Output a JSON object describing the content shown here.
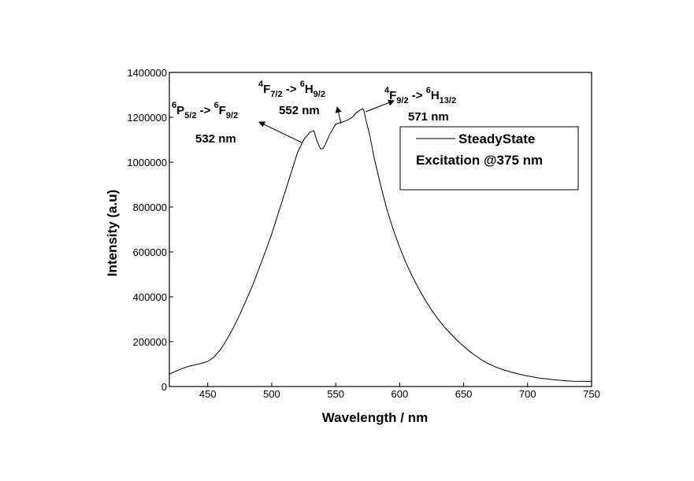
{
  "chart_data": {
    "type": "line",
    "xlabel": "Wavelength / nm",
    "ylabel": "Intensity  (a.u)",
    "xlim": [
      420,
      750
    ],
    "ylim": [
      0,
      1400000
    ],
    "x_ticks": [
      450,
      500,
      550,
      600,
      650,
      700,
      750
    ],
    "x_tick_labels": [
      "450",
      "500",
      "550",
      "600",
      "650",
      "700",
      "750"
    ],
    "y_ticks": [
      0,
      200000,
      400000,
      600000,
      800000,
      1000000,
      1200000,
      1400000
    ],
    "y_tick_labels": [
      "0",
      "200000",
      "400000",
      "600000",
      "800000",
      "1000000",
      "1200000",
      "1400000"
    ],
    "legend": {
      "position": "top-right",
      "series_label": "SteadyState",
      "note": "Excitation @375 nm"
    },
    "series": [
      {
        "name": "SteadyState",
        "x": [
          420,
          425,
          430,
          435,
          440,
          445,
          450,
          455,
          460,
          465,
          470,
          475,
          480,
          485,
          490,
          495,
          500,
          505,
          510,
          515,
          520,
          525,
          530,
          533,
          535,
          538,
          540,
          542,
          545,
          548,
          550,
          553,
          556,
          560,
          563,
          566,
          569,
          571,
          572,
          574,
          577,
          580,
          585,
          590,
          595,
          600,
          605,
          610,
          615,
          620,
          625,
          630,
          635,
          640,
          645,
          650,
          655,
          660,
          665,
          670,
          675,
          680,
          685,
          690,
          695,
          700,
          705,
          710,
          715,
          720,
          725,
          730,
          735,
          740,
          745,
          750
        ],
        "values": [
          55000,
          68000,
          80000,
          90000,
          97000,
          103000,
          112000,
          132000,
          165000,
          210000,
          262000,
          320000,
          385000,
          450000,
          525000,
          600000,
          680000,
          770000,
          860000,
          950000,
          1040000,
          1100000,
          1135000,
          1140000,
          1100000,
          1060000,
          1060000,
          1080000,
          1120000,
          1150000,
          1170000,
          1175000,
          1180000,
          1190000,
          1200000,
          1220000,
          1232000,
          1238000,
          1230000,
          1180000,
          1110000,
          1020000,
          900000,
          790000,
          700000,
          620000,
          550000,
          490000,
          435000,
          385000,
          340000,
          300000,
          265000,
          235000,
          205000,
          180000,
          155000,
          135000,
          115000,
          100000,
          87000,
          77000,
          68000,
          60000,
          53000,
          47000,
          42000,
          37000,
          34000,
          31000,
          28000,
          26000,
          24000,
          23000,
          23000,
          23000
        ]
      }
    ],
    "annotations": [
      {
        "term_a": "P",
        "sup_a": "6",
        "sub_a": "5/2",
        "arrow": "->",
        "term_b": "F",
        "sup_b": "6",
        "sub_b": "9/2",
        "wavelength": "532 nm"
      },
      {
        "term_a": "F",
        "sup_a": "4",
        "sub_a": "7/2",
        "arrow": "->",
        "term_b": "H",
        "sup_b": "6",
        "sub_b": "9/2",
        "wavelength": "552 nm"
      },
      {
        "term_a": "F",
        "sup_a": "4",
        "sub_a": "9/2",
        "arrow": "->",
        "term_b": "H",
        "sup_b": "6",
        "sub_b": "13/2",
        "wavelength": "571 nm"
      }
    ]
  }
}
